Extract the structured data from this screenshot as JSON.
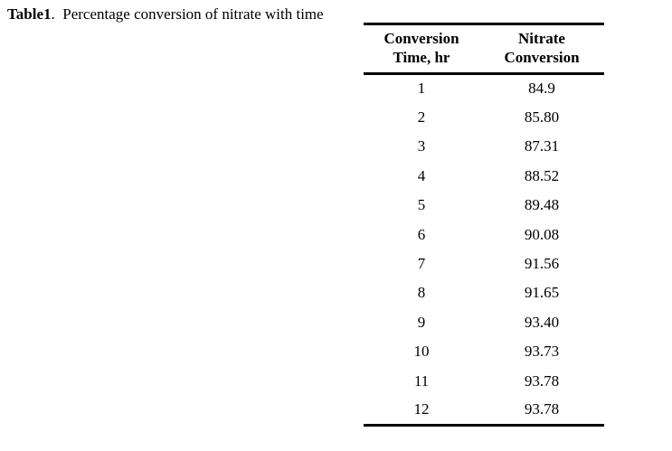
{
  "caption": {
    "label": "Table1",
    "text": ".  Percentage conversion of nitrate with time"
  },
  "table": {
    "headers": [
      {
        "line1": "Conversion",
        "line2": "Time, hr"
      },
      {
        "line1": "Nitrate",
        "line2": "Conversion"
      }
    ],
    "rows": [
      {
        "time": "1",
        "conversion": "84.9"
      },
      {
        "time": "2",
        "conversion": "85.80"
      },
      {
        "time": "3",
        "conversion": "87.31"
      },
      {
        "time": "4",
        "conversion": "88.52"
      },
      {
        "time": "5",
        "conversion": "89.48"
      },
      {
        "time": "6",
        "conversion": "90.08"
      },
      {
        "time": "7",
        "conversion": "91.56"
      },
      {
        "time": "8",
        "conversion": "91.65"
      },
      {
        "time": "9",
        "conversion": "93.40"
      },
      {
        "time": "10",
        "conversion": "93.73"
      },
      {
        "time": "11",
        "conversion": "93.78"
      },
      {
        "time": "12",
        "conversion": "93.78"
      }
    ]
  },
  "chart_data": {
    "type": "table",
    "title": "Table1. Percentage conversion of nitrate with time",
    "columns": [
      "Conversion Time, hr",
      "Nitrate Conversion"
    ],
    "x": [
      1,
      2,
      3,
      4,
      5,
      6,
      7,
      8,
      9,
      10,
      11,
      12
    ],
    "values": [
      84.9,
      85.8,
      87.31,
      88.52,
      89.48,
      90.08,
      91.56,
      91.65,
      93.4,
      93.73,
      93.78,
      93.78
    ]
  }
}
